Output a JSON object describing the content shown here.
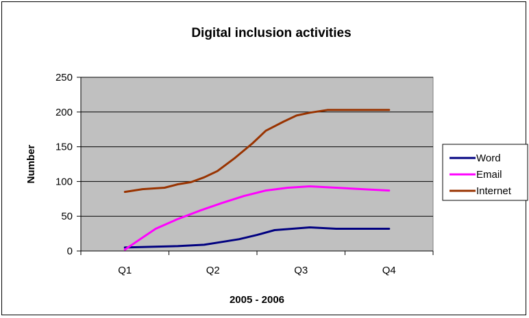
{
  "chart_data": {
    "type": "line",
    "title": "Digital inclusion activities",
    "xlabel": "2005 - 2006",
    "ylabel": "Number",
    "categories": [
      "Q1",
      "Q2",
      "Q3",
      "Q4"
    ],
    "x_range": [
      0.5,
      4.5
    ],
    "ylim": [
      0,
      250
    ],
    "yticks": [
      0,
      50,
      100,
      150,
      200,
      250
    ],
    "grid": true,
    "legend_position": "right",
    "plot_background": "#c0c0c0",
    "series": [
      {
        "name": "Word",
        "color": "#000080",
        "x": [
          1,
          1.3,
          1.6,
          1.9,
          2.1,
          2.3,
          2.5,
          2.7,
          2.9,
          3.1,
          3.4,
          3.7,
          4.0
        ],
        "y": [
          5,
          6,
          7,
          9,
          13,
          17,
          23,
          30,
          32,
          34,
          32,
          32,
          32
        ]
      },
      {
        "name": "Email",
        "color": "#ff00ff",
        "x": [
          1,
          1.15,
          1.35,
          1.6,
          1.85,
          2.1,
          2.35,
          2.6,
          2.85,
          3.1,
          3.4,
          3.7,
          4.0
        ],
        "y": [
          2,
          15,
          32,
          46,
          58,
          69,
          79,
          87,
          91,
          93,
          91,
          89,
          87
        ]
      },
      {
        "name": "Internet",
        "color": "#993300",
        "x": [
          1,
          1.2,
          1.45,
          1.6,
          1.75,
          1.9,
          2.05,
          2.25,
          2.45,
          2.6,
          2.8,
          2.95,
          3.1,
          3.3,
          3.6,
          4.0
        ],
        "y": [
          85,
          89,
          91,
          96,
          99,
          106,
          115,
          134,
          155,
          173,
          186,
          195,
          199,
          203,
          203,
          203
        ]
      }
    ]
  }
}
